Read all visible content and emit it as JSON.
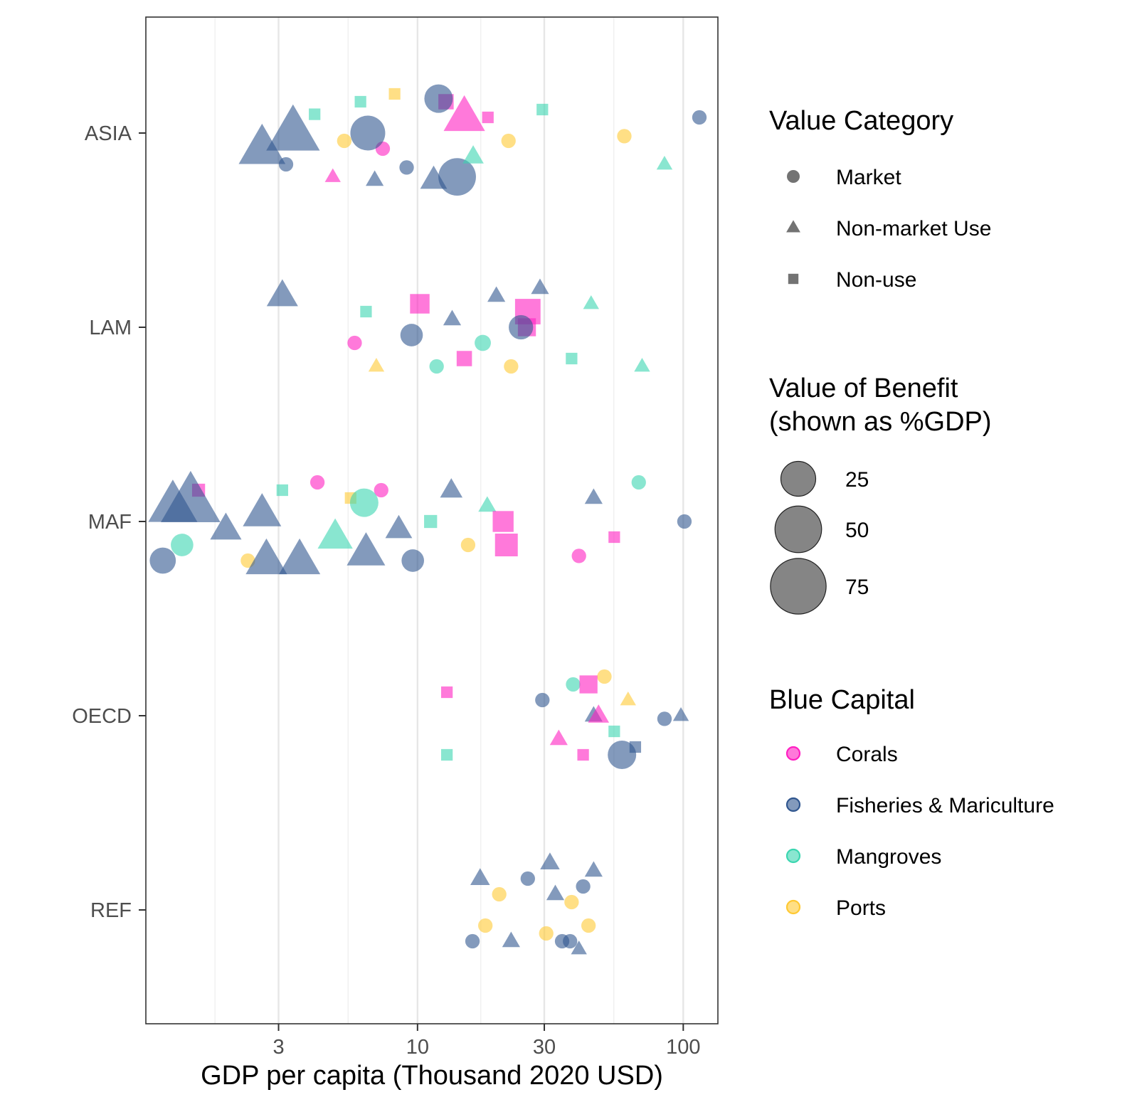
{
  "chart_data": {
    "type": "scatter",
    "xlabel": "GDP per capita (Thousand 2020 USD)",
    "ylabel": "",
    "x_scale": "log10",
    "xlim": [
      0.95,
      135
    ],
    "x_ticks": [
      3,
      10,
      30,
      100
    ],
    "x_tick_labels": [
      "3",
      "10",
      "30",
      "100"
    ],
    "x_minor_ticks": [
      1.73,
      5.48,
      17.3,
      54.8
    ],
    "categories": [
      "ASIA",
      "LAM",
      "MAF",
      "OECD",
      "REF"
    ],
    "grid": "vertical",
    "legend_placement": "right",
    "legends": {
      "shape": {
        "title": "Value Category",
        "entries": [
          {
            "label": "Market",
            "shape": "circle"
          },
          {
            "label": "Non-market Use",
            "shape": "triangle"
          },
          {
            "label": "Non-use",
            "shape": "square"
          }
        ]
      },
      "size": {
        "title_line1": "Value of Benefit",
        "title_line2": "(shown as %GDP)",
        "entries": [
          {
            "label": "25",
            "value": 25
          },
          {
            "label": "50",
            "value": 50
          },
          {
            "label": "75",
            "value": 75
          }
        ]
      },
      "color": {
        "title": "Blue Capital",
        "entries": [
          {
            "label": "Corals",
            "color": "#ff1fc2"
          },
          {
            "label": "Fisheries & Mariculture",
            "color": "#30568f"
          },
          {
            "label": "Mangroves",
            "color": "#3bd6b0"
          },
          {
            "label": "Ports",
            "color": "#ffc933"
          }
        ]
      }
    },
    "colors": {
      "Corals": "#ff1fc2",
      "Fisheries & Mariculture": "#30568f",
      "Mangroves": "#3bd6b0",
      "Ports": "#ffc933"
    },
    "series": [
      {
        "region": "ASIA",
        "x": [
          3.2,
          4.1,
          4.8,
          5.3,
          6.1,
          6.9,
          7.4,
          8.2,
          9.1,
          11.5,
          12.8,
          14.1,
          16.2,
          18.4,
          22.0,
          29.5,
          60.0,
          85.0,
          115.0,
          2.6,
          3.4,
          6.5,
          12.0,
          15.0
        ],
        "y": [
          0.2,
          -0.12,
          0.28,
          0.05,
          -0.2,
          0.3,
          0.1,
          -0.25,
          0.22,
          0.3,
          -0.2,
          0.28,
          0.15,
          -0.1,
          0.05,
          -0.15,
          0.02,
          0.2,
          -0.1,
          0.1,
          0.0,
          0.0,
          -0.22,
          -0.1
        ],
        "category": [
          "Market",
          "Non-use",
          "Non-market Use",
          "Market",
          "Non-use",
          "Non-market Use",
          "Market",
          "Non-use",
          "Market",
          "Non-market Use",
          "Non-use",
          "Market",
          "Non-market Use",
          "Non-use",
          "Market",
          "Non-use",
          "Market",
          "Non-market Use",
          "Market",
          "Non-market Use",
          "Non-market Use",
          "Market",
          "Market",
          "Non-market Use"
        ],
        "capital": [
          "Fisheries & Mariculture",
          "Mangroves",
          "Corals",
          "Ports",
          "Mangroves",
          "Fisheries & Mariculture",
          "Corals",
          "Ports",
          "Fisheries & Mariculture",
          "Fisheries & Mariculture",
          "Corals",
          "Fisheries & Mariculture",
          "Mangroves",
          "Corals",
          "Ports",
          "Mangroves",
          "Ports",
          "Mangroves",
          "Fisheries & Mariculture",
          "Fisheries & Mariculture",
          "Fisheries & Mariculture",
          "Fisheries & Mariculture",
          "Fisheries & Mariculture",
          "Corals"
        ],
        "value": [
          2,
          2,
          2,
          2,
          2,
          3,
          2,
          2,
          2,
          10,
          5,
          30,
          5,
          2,
          2,
          2,
          2,
          2,
          2,
          40,
          55,
          25,
          15,
          30
        ]
      },
      {
        "region": "LAM",
        "x": [
          3.1,
          5.8,
          6.4,
          7.0,
          9.5,
          10.2,
          11.8,
          13.5,
          15.0,
          17.6,
          19.8,
          22.5,
          25.8,
          28.9,
          38.0,
          45.0,
          70.0,
          26.0,
          24.5
        ],
        "y": [
          -0.2,
          0.1,
          -0.1,
          0.25,
          0.05,
          -0.15,
          0.25,
          -0.05,
          0.2,
          0.1,
          -0.2,
          0.25,
          0.0,
          -0.25,
          0.2,
          -0.15,
          0.25,
          -0.1,
          0.0
        ],
        "category": [
          "Non-market Use",
          "Market",
          "Non-use",
          "Non-market Use",
          "Market",
          "Non-use",
          "Market",
          "Non-market Use",
          "Non-use",
          "Market",
          "Non-market Use",
          "Market",
          "Non-use",
          "Non-market Use",
          "Non-use",
          "Non-market Use",
          "Non-market Use",
          "Non-use",
          "Market"
        ],
        "capital": [
          "Fisheries & Mariculture",
          "Corals",
          "Mangroves",
          "Ports",
          "Fisheries & Mariculture",
          "Corals",
          "Mangroves",
          "Fisheries & Mariculture",
          "Corals",
          "Mangroves",
          "Fisheries & Mariculture",
          "Ports",
          "Corals",
          "Fisheries & Mariculture",
          "Mangroves",
          "Mangroves",
          "Mangroves",
          "Corals",
          "Fisheries & Mariculture"
        ],
        "value": [
          15,
          2,
          2,
          2,
          8,
          10,
          2,
          3,
          5,
          3,
          3,
          2,
          8,
          3,
          2,
          2,
          2,
          20,
          10
        ]
      },
      {
        "region": "MAF",
        "x": [
          1.1,
          1.2,
          1.3,
          1.5,
          1.9,
          2.3,
          2.6,
          3.1,
          3.6,
          4.2,
          4.9,
          5.6,
          6.4,
          7.3,
          8.5,
          9.6,
          11.2,
          13.4,
          15.5,
          18.3,
          21.6,
          40.5,
          46.0,
          55.0,
          68.0,
          101.0,
          1.4,
          2.7,
          6.3,
          21.0
        ],
        "y": [
          0.25,
          -0.1,
          0.15,
          -0.2,
          0.05,
          0.25,
          -0.05,
          -0.2,
          0.25,
          -0.25,
          0.1,
          -0.15,
          0.2,
          -0.2,
          0.05,
          0.25,
          0.0,
          -0.2,
          0.15,
          -0.1,
          0.15,
          0.22,
          -0.15,
          0.1,
          -0.25,
          0.0,
          -0.12,
          0.25,
          -0.12,
          0.0
        ],
        "category": [
          "Market",
          "Non-market Use",
          "Market",
          "Non-use",
          "Non-market Use",
          "Market",
          "Non-market Use",
          "Non-use",
          "Non-market Use",
          "Market",
          "Non-market Use",
          "Non-use",
          "Non-market Use",
          "Market",
          "Non-market Use",
          "Market",
          "Non-use",
          "Non-market Use",
          "Market",
          "Non-market Use",
          "Non-use",
          "Market",
          "Non-market Use",
          "Non-use",
          "Market",
          "Market",
          "Non-market Use",
          "Non-market Use",
          "Market",
          "Non-use"
        ],
        "capital": [
          "Fisheries & Mariculture",
          "Fisheries & Mariculture",
          "Mangroves",
          "Corals",
          "Fisheries & Mariculture",
          "Ports",
          "Fisheries & Mariculture",
          "Mangroves",
          "Fisheries & Mariculture",
          "Corals",
          "Mangroves",
          "Ports",
          "Fisheries & Mariculture",
          "Corals",
          "Fisheries & Mariculture",
          "Fisheries & Mariculture",
          "Mangroves",
          "Fisheries & Mariculture",
          "Ports",
          "Mangroves",
          "Corals",
          "Corals",
          "Fisheries & Mariculture",
          "Corals",
          "Mangroves",
          "Fisheries & Mariculture",
          "Fisheries & Mariculture",
          "Fisheries & Mariculture",
          "Mangroves",
          "Corals"
        ],
        "value": [
          12,
          45,
          8,
          3,
          15,
          2,
          25,
          2,
          30,
          2,
          20,
          2,
          25,
          2,
          10,
          8,
          3,
          6,
          2,
          3,
          15,
          2,
          3,
          2,
          2,
          2,
          70,
          30,
          15,
          12
        ]
      },
      {
        "region": "OECD",
        "x": [
          12.9,
          12.9,
          29.5,
          34.0,
          38.5,
          42.0,
          46.0,
          50.5,
          55.0,
          58.8,
          62.0,
          66.0,
          85.0,
          98.0,
          48.0,
          44.0
        ],
        "y": [
          0.25,
          -0.15,
          -0.1,
          0.15,
          -0.2,
          0.25,
          0.0,
          -0.25,
          0.1,
          0.25,
          -0.1,
          0.2,
          0.02,
          0.0,
          0.0,
          -0.2
        ],
        "category": [
          "Non-use",
          "Non-use",
          "Market",
          "Non-market Use",
          "Market",
          "Non-use",
          "Non-market Use",
          "Market",
          "Non-use",
          "Market",
          "Non-market Use",
          "Non-use",
          "Market",
          "Non-market Use",
          "Non-market Use",
          "Non-use"
        ],
        "capital": [
          "Mangroves",
          "Corals",
          "Fisheries & Mariculture",
          "Corals",
          "Mangroves",
          "Corals",
          "Fisheries & Mariculture",
          "Ports",
          "Mangroves",
          "Fisheries & Mariculture",
          "Ports",
          "Fisheries & Mariculture",
          "Fisheries & Mariculture",
          "Fisheries & Mariculture",
          "Corals",
          "Corals"
        ],
        "value": [
          2,
          2,
          2,
          3,
          2,
          2,
          3,
          2,
          2,
          15,
          2,
          2,
          2,
          2,
          5,
          8
        ]
      },
      {
        "region": "REF",
        "x": [
          16.1,
          17.2,
          18.0,
          20.3,
          22.5,
          26.0,
          30.5,
          33.0,
          35.0,
          38.0,
          40.5,
          42.0,
          44.0,
          46.0,
          31.5,
          37.5
        ],
        "y": [
          0.2,
          -0.2,
          0.1,
          -0.1,
          0.2,
          -0.2,
          0.15,
          -0.1,
          0.2,
          -0.05,
          0.25,
          -0.15,
          0.1,
          -0.25,
          -0.3,
          0.2
        ],
        "category": [
          "Market",
          "Non-market Use",
          "Market",
          "Market",
          "Non-market Use",
          "Market",
          "Market",
          "Non-market Use",
          "Market",
          "Market",
          "Non-market Use",
          "Market",
          "Market",
          "Non-market Use",
          "Non-market Use",
          "Market"
        ],
        "capital": [
          "Fisheries & Mariculture",
          "Fisheries & Mariculture",
          "Ports",
          "Ports",
          "Fisheries & Mariculture",
          "Fisheries & Mariculture",
          "Ports",
          "Fisheries & Mariculture",
          "Fisheries & Mariculture",
          "Ports",
          "Fisheries & Mariculture",
          "Fisheries & Mariculture",
          "Ports",
          "Fisheries & Mariculture",
          "Fisheries & Mariculture",
          "Fisheries & Mariculture"
        ],
        "value": [
          2,
          4,
          2,
          2,
          3,
          2,
          2,
          3,
          2,
          2,
          2,
          2,
          2,
          3,
          4,
          2
        ]
      }
    ]
  }
}
